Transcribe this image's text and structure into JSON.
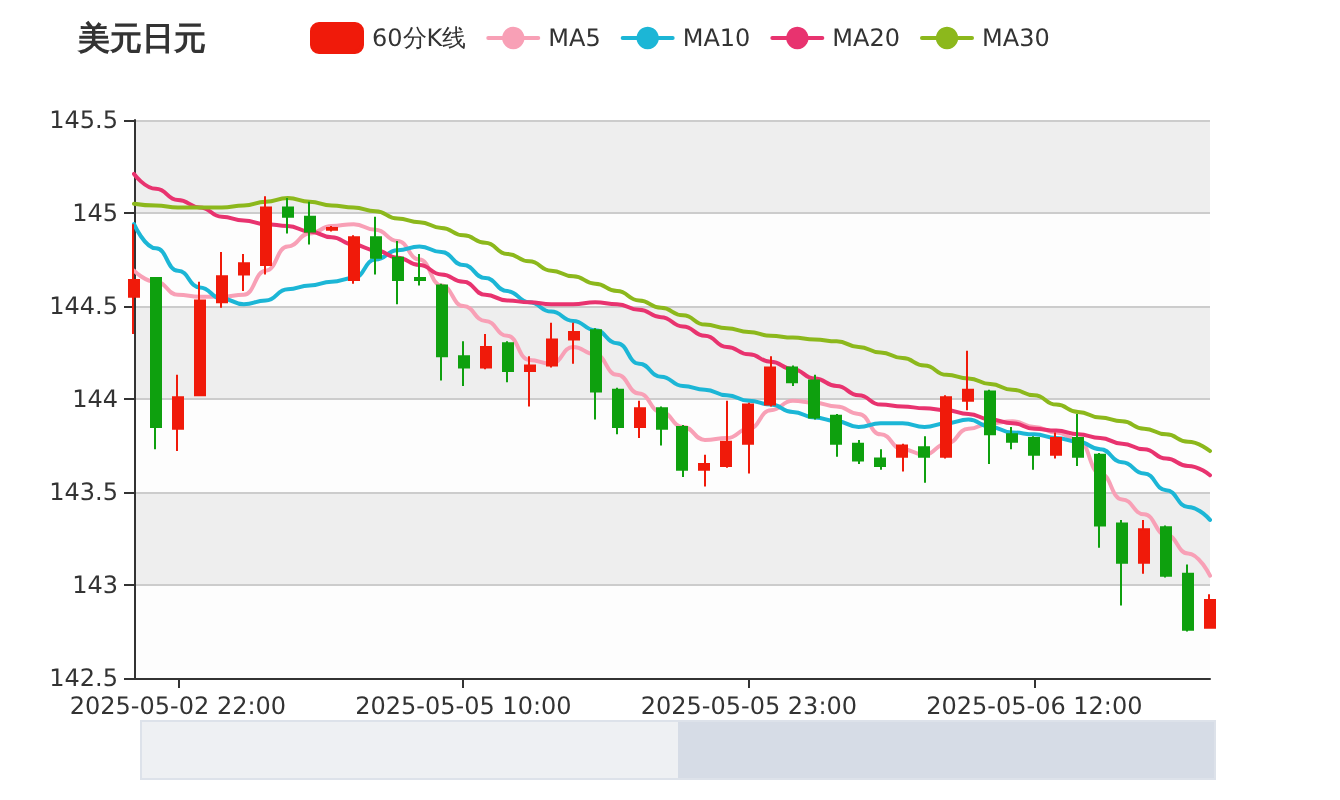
{
  "chart_data": {
    "type": "candlestick",
    "title": "美元日元",
    "legend": "top",
    "grid": "y",
    "marker": "none",
    "categories": [
      null,
      null,
      "2025-05-02 22:00",
      null,
      null,
      null,
      null,
      null,
      null,
      null,
      null,
      null,
      null,
      null,
      null,
      "2025-05-05 10:00",
      null,
      null,
      null,
      null,
      null,
      null,
      null,
      null,
      null,
      null,
      null,
      null,
      "2025-05-05 23:00",
      null,
      null,
      null,
      null,
      null,
      null,
      null,
      null,
      null,
      null,
      null,
      null,
      "2025-05-06 12:00",
      null,
      null,
      null,
      null,
      null,
      null,
      null,
      null
    ],
    "ylim": [
      142.5,
      145.5
    ],
    "yticks": [
      142.5,
      143,
      143.5,
      144,
      144.5,
      145,
      145.5
    ],
    "series": [
      {
        "name": "60分K线",
        "color": "#f01a0a",
        "colors": [
          "#f01a0a",
          "#0ea00e",
          "#f01a0a",
          "#f01a0a",
          "#f01a0a",
          "#f01a0a",
          "#f01a0a",
          "#0ea00e",
          "#0ea00e",
          "#f01a0a",
          "#f01a0a",
          "#0ea00e",
          "#0ea00e",
          "#0ea00e",
          "#0ea00e",
          "#0ea00e",
          "#f01a0a",
          "#0ea00e",
          "#f01a0a",
          "#f01a0a",
          "#f01a0a",
          "#0ea00e",
          "#0ea00e",
          "#f01a0a",
          "#0ea00e",
          "#0ea00e",
          "#f01a0a",
          "#f01a0a",
          "#f01a0a",
          "#f01a0a",
          "#0ea00e",
          "#0ea00e",
          "#0ea00e",
          "#0ea00e",
          "#0ea00e",
          "#f01a0a",
          "#0ea00e",
          "#f01a0a",
          "#f01a0a",
          "#0ea00e",
          "#0ea00e",
          "#0ea00e",
          "#f01a0a",
          "#0ea00e",
          "#0ea00e",
          "#0ea00e",
          "#f01a0a",
          "#0ea00e",
          "#0ea00e",
          "#f01a0a"
        ],
        "ohlc": [
          [
            144.55,
            144.94,
            144.35,
            144.64
          ],
          [
            144.65,
            144.65,
            143.73,
            143.85
          ],
          [
            143.84,
            144.13,
            143.72,
            144.01
          ],
          [
            144.02,
            144.63,
            144.02,
            144.53
          ],
          [
            144.52,
            144.79,
            144.49,
            144.66
          ],
          [
            144.67,
            144.78,
            144.58,
            144.73
          ],
          [
            144.72,
            145.09,
            144.67,
            145.03
          ],
          [
            145.03,
            145.08,
            144.89,
            144.98
          ],
          [
            144.98,
            145.06,
            144.83,
            144.9
          ],
          [
            144.91,
            144.93,
            144.9,
            144.92
          ],
          [
            144.64,
            144.88,
            144.62,
            144.87
          ],
          [
            144.87,
            144.98,
            144.67,
            144.76
          ],
          [
            144.76,
            144.85,
            144.51,
            144.64
          ],
          [
            144.65,
            144.78,
            144.61,
            144.64
          ],
          [
            144.61,
            144.62,
            144.1,
            144.23
          ],
          [
            144.23,
            144.31,
            144.07,
            144.17
          ],
          [
            144.17,
            144.35,
            144.16,
            144.28
          ],
          [
            144.3,
            144.31,
            144.09,
            144.15
          ],
          [
            144.15,
            144.23,
            143.96,
            144.18
          ],
          [
            144.18,
            144.41,
            144.17,
            144.32
          ],
          [
            144.32,
            144.41,
            144.19,
            144.36
          ],
          [
            144.37,
            144.38,
            143.89,
            144.04
          ],
          [
            144.05,
            144.06,
            143.81,
            143.85
          ],
          [
            143.85,
            143.99,
            143.79,
            143.95
          ],
          [
            143.95,
            143.96,
            143.75,
            143.84
          ],
          [
            143.85,
            143.86,
            143.58,
            143.62
          ],
          [
            143.62,
            143.7,
            143.53,
            143.65
          ],
          [
            143.64,
            143.99,
            143.63,
            143.77
          ],
          [
            143.76,
            143.98,
            143.6,
            143.97
          ],
          [
            143.97,
            144.23,
            143.96,
            144.17
          ],
          [
            144.17,
            144.18,
            144.07,
            144.09
          ],
          [
            144.1,
            144.13,
            143.89,
            143.9
          ],
          [
            143.91,
            143.92,
            143.69,
            143.76
          ],
          [
            143.76,
            143.78,
            143.65,
            143.67
          ],
          [
            143.68,
            143.73,
            143.62,
            143.64
          ],
          [
            143.69,
            143.76,
            143.61,
            143.75
          ],
          [
            143.74,
            143.8,
            143.55,
            143.69
          ],
          [
            143.69,
            144.02,
            143.68,
            144.01
          ],
          [
            143.99,
            144.26,
            143.94,
            144.05
          ],
          [
            144.04,
            144.05,
            143.65,
            143.81
          ],
          [
            143.81,
            143.85,
            143.73,
            143.77
          ],
          [
            143.79,
            143.8,
            143.62,
            143.7
          ],
          [
            143.7,
            143.82,
            143.68,
            143.79
          ],
          [
            143.79,
            143.92,
            143.64,
            143.69
          ],
          [
            143.7,
            143.71,
            143.2,
            143.32
          ],
          [
            143.33,
            143.35,
            142.89,
            143.12
          ],
          [
            143.12,
            143.35,
            143.06,
            143.3
          ],
          [
            143.31,
            143.32,
            143.04,
            143.05
          ],
          [
            143.06,
            143.11,
            142.75,
            142.76
          ],
          [
            142.77,
            142.95,
            142.77,
            142.92
          ]
        ]
      },
      {
        "name": "MA5",
        "type": "line",
        "color": "#f8a0b6",
        "values": [
          144.69,
          144.63,
          144.56,
          144.55,
          144.55,
          144.56,
          144.69,
          144.82,
          144.89,
          144.93,
          144.94,
          144.91,
          144.85,
          144.75,
          144.61,
          144.5,
          144.42,
          144.34,
          144.21,
          144.19,
          144.28,
          144.24,
          144.13,
          144.03,
          143.93,
          143.85,
          143.78,
          143.79,
          143.84,
          143.94,
          143.99,
          143.98,
          143.96,
          143.92,
          143.81,
          143.73,
          143.7,
          143.76,
          143.84,
          143.87,
          143.88,
          143.85,
          143.82,
          143.78,
          143.6,
          143.46,
          143.38,
          143.27,
          143.17,
          143.05
        ]
      },
      {
        "name": "MA10",
        "type": "line",
        "color": "#1cb6d6",
        "values": [
          144.94,
          144.81,
          144.69,
          144.6,
          144.54,
          144.51,
          144.53,
          144.59,
          144.61,
          144.63,
          144.65,
          144.75,
          144.8,
          144.82,
          144.79,
          144.72,
          144.65,
          144.58,
          144.52,
          144.47,
          144.42,
          144.37,
          144.3,
          144.19,
          144.12,
          144.07,
          144.05,
          144.02,
          143.99,
          143.97,
          143.93,
          143.9,
          143.88,
          143.85,
          143.87,
          143.87,
          143.85,
          143.87,
          143.89,
          143.85,
          143.82,
          143.81,
          143.79,
          143.77,
          143.73,
          143.66,
          143.6,
          143.51,
          143.42,
          143.35
        ]
      },
      {
        "name": "MA20",
        "type": "line",
        "color": "#e8336f",
        "values": [
          145.21,
          145.13,
          145.07,
          145.03,
          144.98,
          144.96,
          144.94,
          144.93,
          144.9,
          144.87,
          144.83,
          144.8,
          144.76,
          144.72,
          144.67,
          144.63,
          144.56,
          144.53,
          144.52,
          144.51,
          144.51,
          144.52,
          144.51,
          144.48,
          144.44,
          144.39,
          144.34,
          144.28,
          144.24,
          144.2,
          144.16,
          144.11,
          144.07,
          144.02,
          143.97,
          143.96,
          143.95,
          143.94,
          143.92,
          143.89,
          143.87,
          143.84,
          143.83,
          143.81,
          143.79,
          143.76,
          143.73,
          143.68,
          143.64,
          143.59
        ]
      },
      {
        "name": "MA30",
        "type": "line",
        "color": "#8cb81c",
        "values": [
          145.05,
          145.04,
          145.03,
          145.03,
          145.03,
          145.04,
          145.06,
          145.08,
          145.06,
          145.04,
          145.03,
          145.01,
          144.97,
          144.95,
          144.92,
          144.88,
          144.84,
          144.78,
          144.74,
          144.69,
          144.66,
          144.62,
          144.58,
          144.53,
          144.49,
          144.45,
          144.4,
          144.38,
          144.36,
          144.34,
          144.33,
          144.32,
          144.31,
          144.28,
          144.25,
          144.22,
          144.18,
          144.13,
          144.11,
          144.08,
          144.05,
          144.02,
          143.97,
          143.93,
          143.9,
          143.88,
          143.84,
          143.81,
          143.77,
          143.72
        ]
      }
    ]
  }
}
